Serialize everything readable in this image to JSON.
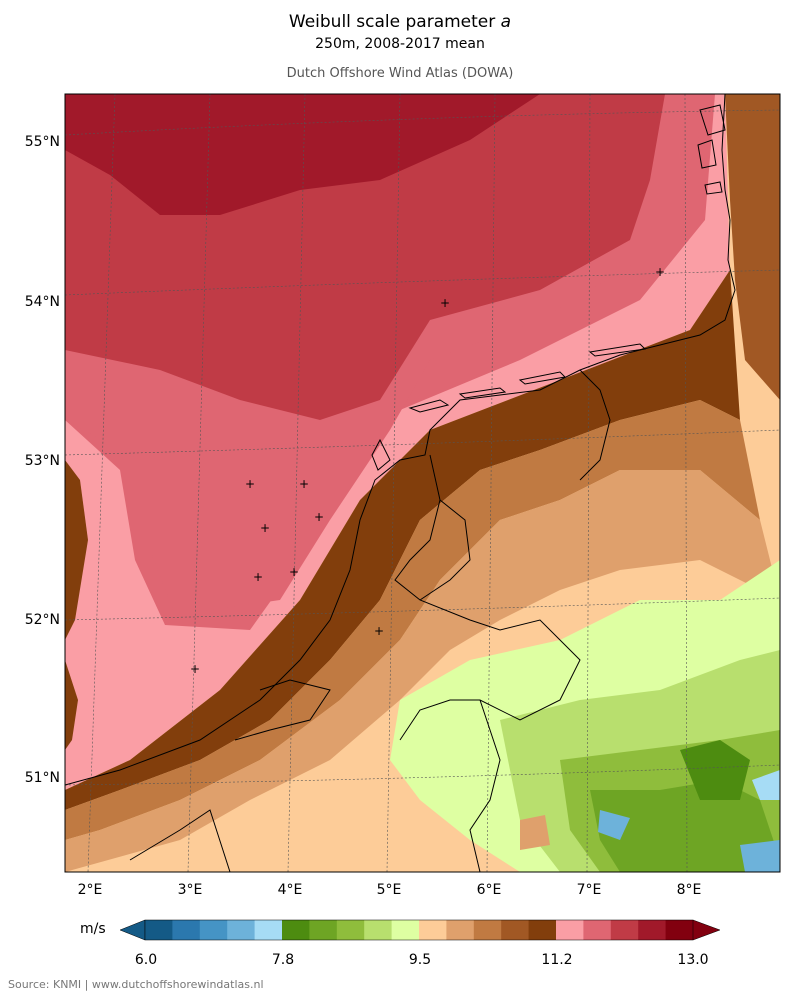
{
  "title": "Weibull scale parameter",
  "title_symbol": "a",
  "subtitle": "250m, 2008-2017 mean",
  "credit": "Dutch Offshore Wind Atlas (DOWA)",
  "source": "Source: KNMI | www.dutchoffshorewindatlas.nl",
  "lat_labels": [
    "55°N",
    "54°N",
    "53°N",
    "52°N",
    "51°N"
  ],
  "lon_labels": [
    "2°E",
    "3°E",
    "4°E",
    "5°E",
    "6°E",
    "7°E",
    "8°E"
  ],
  "colorbar": {
    "unit": "m/s",
    "ticks": [
      "6.0",
      "7.8",
      "9.5",
      "11.2",
      "13.0"
    ],
    "colors": [
      "#145a86",
      "#2b78ae",
      "#4594c5",
      "#6db2da",
      "#a6dcf5",
      "#4d8c10",
      "#6ea524",
      "#8fbd3c",
      "#b8df6e",
      "#deffa2",
      "#fdcc98",
      "#dfa06c",
      "#c07a42",
      "#a15824",
      "#823e0c",
      "#fa9ea5",
      "#df6672",
      "#c03b46",
      "#a1192a",
      "#82000f"
    ]
  },
  "stations": [
    "+",
    "+",
    "+",
    "+",
    "+",
    "+",
    "+",
    "+",
    "+",
    "+"
  ]
}
